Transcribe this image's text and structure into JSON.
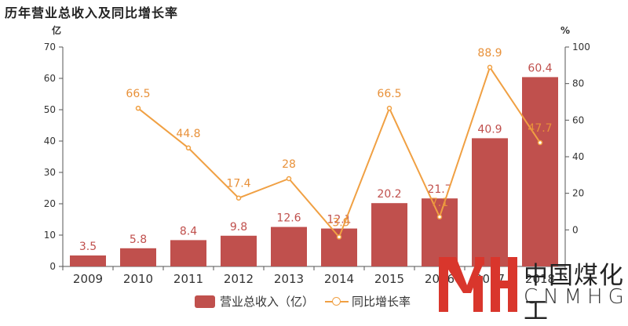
{
  "title": "历年营业总收入及同比增长率",
  "colors": {
    "bar": "#c0504d",
    "line": "#f0a043",
    "bar_label": "#c0504d",
    "line_label": "#e8913a",
    "axis_text": "#333333",
    "axis_line": "#555555"
  },
  "chart_data": {
    "type": "bar",
    "categories": [
      "2009",
      "2010",
      "2011",
      "2012",
      "2013",
      "2014",
      "2015",
      "2016",
      "2017",
      "2018"
    ],
    "series": [
      {
        "name": "营业总收入（亿）",
        "type": "bar",
        "axis": "left",
        "values": [
          3.5,
          5.8,
          8.4,
          9.8,
          12.6,
          12.1,
          20.2,
          21.7,
          40.9,
          60.4
        ]
      },
      {
        "name": "同比增长率",
        "type": "line",
        "axis": "right",
        "values": [
          null,
          66.5,
          44.8,
          17.4,
          28,
          -3.9,
          66.5,
          7.1,
          88.9,
          47.7
        ],
        "labels": [
          "",
          "66.5",
          "44.8",
          "17.4",
          "28",
          "-3.9",
          "66.5",
          "7.1",
          "88.9",
          "47.7"
        ]
      }
    ],
    "left_axis": {
      "unit": "亿",
      "range": [
        0,
        70
      ],
      "ticks": [
        0,
        10,
        20,
        30,
        40,
        50,
        60,
        70
      ]
    },
    "right_axis": {
      "unit": "%",
      "range": [
        -20,
        100
      ],
      "ticks": [
        0,
        20,
        40,
        60,
        80,
        100
      ]
    },
    "legend_position": "bottom"
  },
  "legend": {
    "bar_label": "营业总收入（亿）",
    "line_label": "同比增长率"
  },
  "watermark": {
    "chinese": "中国煤化工",
    "english": "CNMHG"
  }
}
